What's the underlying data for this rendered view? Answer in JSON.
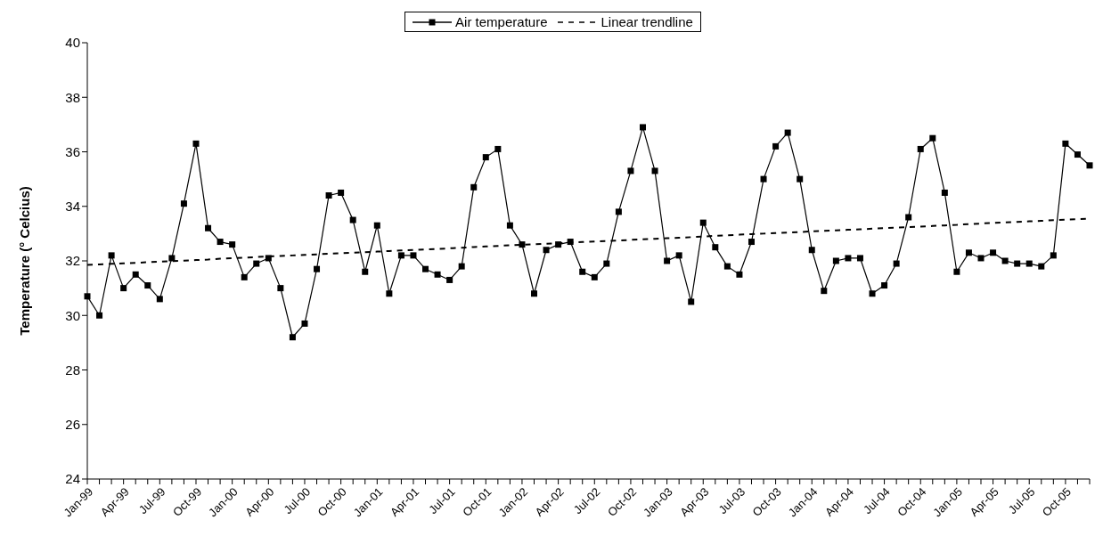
{
  "chart_data": {
    "type": "line",
    "ylabel": "Temperature (° Celcius)",
    "categories": [
      "Jan-99",
      null,
      null,
      "Apr-99",
      null,
      null,
      "Jul-99",
      null,
      null,
      "Oct-99",
      null,
      null,
      "Jan-00",
      null,
      null,
      "Apr-00",
      null,
      null,
      "Jul-00",
      null,
      null,
      "Oct-00",
      null,
      null,
      "Jan-01",
      null,
      null,
      "Apr-01",
      null,
      null,
      "Jul-01",
      null,
      null,
      "Oct-01",
      null,
      null,
      "Jan-02",
      null,
      null,
      "Apr-02",
      null,
      null,
      "Jul-02",
      null,
      null,
      "Oct-02",
      null,
      null,
      "Jan-03",
      null,
      null,
      "Apr-03",
      null,
      null,
      "Jul-03",
      null,
      null,
      "Oct-03",
      null,
      null,
      "Jan-04",
      null,
      null,
      "Apr-04",
      null,
      null,
      "Jul-04",
      null,
      null,
      "Oct-04",
      null,
      null,
      "Jan-05",
      null,
      null,
      "Apr-05",
      null,
      null,
      "Jul-05",
      null,
      null,
      "Oct-05",
      null,
      null
    ],
    "series": [
      {
        "name": "Air temperature",
        "color": "#000000",
        "marker": "square",
        "line_style": "solid",
        "values": [
          30.7,
          30.0,
          32.2,
          31.0,
          31.5,
          31.1,
          30.6,
          32.1,
          34.1,
          36.3,
          33.2,
          32.7,
          32.6,
          31.4,
          31.9,
          32.1,
          31.0,
          29.2,
          29.7,
          31.7,
          34.4,
          34.5,
          33.5,
          31.6,
          33.3,
          30.8,
          32.2,
          32.2,
          31.7,
          31.5,
          31.3,
          31.8,
          34.7,
          35.8,
          36.1,
          33.3,
          32.6,
          30.8,
          32.4,
          32.6,
          32.7,
          31.6,
          31.4,
          31.9,
          33.8,
          35.3,
          36.9,
          35.3,
          32.0,
          32.2,
          30.5,
          33.4,
          32.5,
          31.8,
          31.5,
          32.7,
          35.0,
          36.2,
          36.7,
          35.0,
          32.4,
          30.9,
          32.0,
          32.1,
          32.1,
          30.8,
          31.1,
          31.9,
          33.6,
          36.1,
          36.5,
          34.5,
          31.6,
          32.3,
          32.1,
          32.3,
          32.0,
          31.9,
          31.9,
          31.8,
          32.2,
          36.3,
          35.9,
          35.5
        ]
      },
      {
        "name": "Linear trendline",
        "color": "#000000",
        "marker": "none",
        "line_style": "dashed",
        "values": [
          31.85,
          31.87,
          31.89,
          31.91,
          31.93,
          31.95,
          31.97,
          31.99,
          32.01,
          32.03,
          32.05,
          32.08,
          32.1,
          32.12,
          32.14,
          32.16,
          32.18,
          32.2,
          32.22,
          32.24,
          32.26,
          32.28,
          32.3,
          32.32,
          32.34,
          32.36,
          32.38,
          32.4,
          32.42,
          32.44,
          32.46,
          32.48,
          32.51,
          32.53,
          32.55,
          32.57,
          32.59,
          32.61,
          32.63,
          32.65,
          32.67,
          32.69,
          32.71,
          32.73,
          32.75,
          32.77,
          32.79,
          32.81,
          32.83,
          32.85,
          32.87,
          32.89,
          32.92,
          32.94,
          32.96,
          32.98,
          33.0,
          33.02,
          33.04,
          33.06,
          33.08,
          33.1,
          33.12,
          33.14,
          33.16,
          33.18,
          33.2,
          33.22,
          33.24,
          33.26,
          33.28,
          33.3,
          33.32,
          33.35,
          33.37,
          33.39,
          33.41,
          33.43,
          33.45,
          33.47,
          33.49,
          33.51,
          33.53,
          33.55
        ]
      }
    ],
    "ylim": [
      24,
      40
    ],
    "yticks": [
      24,
      26,
      28,
      30,
      32,
      34,
      36,
      38,
      40
    ],
    "legend": "top"
  }
}
